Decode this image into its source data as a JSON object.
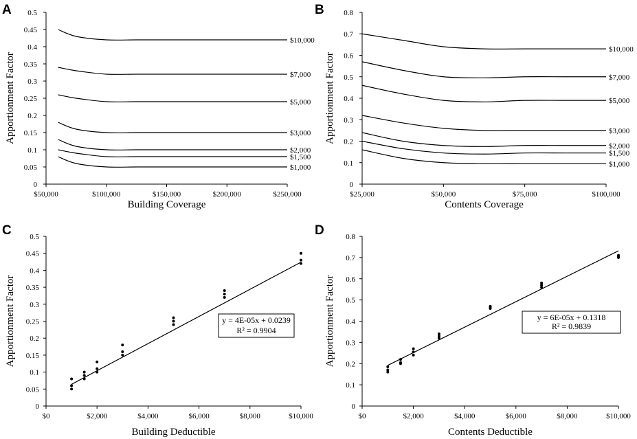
{
  "chart_data": [
    {
      "panel": "A",
      "type": "line",
      "xlabel": "Building Coverage",
      "ylabel": "Apportionment Factor",
      "xlim": [
        50000,
        250000
      ],
      "ylim": [
        0,
        0.5
      ],
      "x_ticks": [
        50000,
        100000,
        150000,
        200000,
        250000
      ],
      "x_tick_labels": [
        "$50,000",
        "$100,000",
        "$150,000",
        "$200,000",
        "$250,000"
      ],
      "y_ticks": [
        0,
        0.05,
        0.1,
        0.15,
        0.2,
        0.25,
        0.3,
        0.35,
        0.4,
        0.45,
        0.5
      ],
      "y_tick_labels": [
        "0",
        "0.05",
        "0.1",
        "0.15",
        "0.2",
        "0.25",
        "0.3",
        "0.35",
        "0.4",
        "0.45",
        "0.5"
      ],
      "x": [
        60000,
        75000,
        100000,
        125000,
        150000,
        175000,
        200000,
        225000,
        250000
      ],
      "series": [
        {
          "name": "$10,000",
          "values": [
            0.45,
            0.43,
            0.42,
            0.42,
            0.42,
            0.42,
            0.42,
            0.42,
            0.42
          ]
        },
        {
          "name": "$7,000",
          "values": [
            0.34,
            0.33,
            0.32,
            0.32,
            0.32,
            0.32,
            0.32,
            0.32,
            0.32
          ]
        },
        {
          "name": "$5,000",
          "values": [
            0.26,
            0.25,
            0.24,
            0.24,
            0.24,
            0.24,
            0.24,
            0.24,
            0.24
          ]
        },
        {
          "name": "$3,000",
          "values": [
            0.18,
            0.16,
            0.15,
            0.15,
            0.15,
            0.15,
            0.15,
            0.15,
            0.15
          ]
        },
        {
          "name": "$2,000",
          "values": [
            0.13,
            0.11,
            0.1,
            0.1,
            0.1,
            0.1,
            0.1,
            0.1,
            0.1
          ]
        },
        {
          "name": "$1,500",
          "values": [
            0.1,
            0.09,
            0.08,
            0.08,
            0.08,
            0.08,
            0.08,
            0.08,
            0.08
          ]
        },
        {
          "name": "$1,000",
          "values": [
            0.08,
            0.06,
            0.05,
            0.05,
            0.05,
            0.05,
            0.05,
            0.05,
            0.05
          ]
        }
      ]
    },
    {
      "panel": "B",
      "type": "line",
      "xlabel": "Contents Coverage",
      "ylabel": "Apportionment Factor",
      "xlim": [
        25000,
        100000
      ],
      "ylim": [
        0,
        0.8
      ],
      "x_ticks": [
        25000,
        50000,
        75000,
        100000
      ],
      "x_tick_labels": [
        "$25,000",
        "$50,000",
        "$75,000",
        "$100,000"
      ],
      "y_ticks": [
        0,
        0.1,
        0.2,
        0.3,
        0.4,
        0.5,
        0.6,
        0.7,
        0.8
      ],
      "y_tick_labels": [
        "0",
        "0.1",
        "0.2",
        "0.3",
        "0.4",
        "0.5",
        "0.6",
        "0.7",
        "0.8"
      ],
      "x": [
        25000,
        37500,
        50000,
        62500,
        75000,
        87500,
        100000
      ],
      "series": [
        {
          "name": "$10,000",
          "values": [
            0.7,
            0.67,
            0.64,
            0.63,
            0.63,
            0.63,
            0.63
          ]
        },
        {
          "name": "$7,000",
          "values": [
            0.57,
            0.53,
            0.5,
            0.495,
            0.5,
            0.5,
            0.5
          ]
        },
        {
          "name": "$5,000",
          "values": [
            0.46,
            0.42,
            0.39,
            0.383,
            0.39,
            0.39,
            0.39
          ]
        },
        {
          "name": "$3,000",
          "values": [
            0.32,
            0.285,
            0.26,
            0.25,
            0.25,
            0.25,
            0.25
          ]
        },
        {
          "name": "$2,000",
          "values": [
            0.24,
            0.2,
            0.18,
            0.175,
            0.18,
            0.18,
            0.18
          ]
        },
        {
          "name": "$1,500",
          "values": [
            0.2,
            0.165,
            0.145,
            0.14,
            0.145,
            0.145,
            0.145
          ]
        },
        {
          "name": "$1,000",
          "values": [
            0.16,
            0.12,
            0.1,
            0.095,
            0.095,
            0.095,
            0.095
          ]
        }
      ]
    },
    {
      "panel": "C",
      "type": "scatter",
      "xlabel": "Building Deductible",
      "ylabel": "Apportionment Factor",
      "xlim": [
        0,
        10000
      ],
      "ylim": [
        0,
        0.5
      ],
      "x_ticks": [
        0,
        2000,
        4000,
        6000,
        8000,
        10000
      ],
      "x_tick_labels": [
        "$0",
        "$2,000",
        "$4,000",
        "$6,000",
        "$8,000",
        "$10,000"
      ],
      "y_ticks": [
        0,
        0.05,
        0.1,
        0.15,
        0.2,
        0.25,
        0.3,
        0.35,
        0.4,
        0.45,
        0.5
      ],
      "y_tick_labels": [
        "0",
        "0.05",
        "0.1",
        "0.15",
        "0.2",
        "0.25",
        "0.3",
        "0.35",
        "0.4",
        "0.45",
        "0.5"
      ],
      "points": [
        [
          1000,
          0.08
        ],
        [
          1000,
          0.06
        ],
        [
          1000,
          0.05
        ],
        [
          1500,
          0.1
        ],
        [
          1500,
          0.09
        ],
        [
          1500,
          0.08
        ],
        [
          2000,
          0.13
        ],
        [
          2000,
          0.11
        ],
        [
          2000,
          0.1
        ],
        [
          3000,
          0.18
        ],
        [
          3000,
          0.16
        ],
        [
          3000,
          0.15
        ],
        [
          5000,
          0.26
        ],
        [
          5000,
          0.25
        ],
        [
          5000,
          0.24
        ],
        [
          7000,
          0.34
        ],
        [
          7000,
          0.33
        ],
        [
          7000,
          0.32
        ],
        [
          10000,
          0.45
        ],
        [
          10000,
          0.43
        ],
        [
          10000,
          0.42
        ]
      ],
      "trendline": {
        "slope": 4e-05,
        "intercept": 0.0239,
        "x_range": [
          1000,
          10000
        ]
      },
      "equation": "y = 4E-05x + 0.0239",
      "r_squared": "R² = 0.9904"
    },
    {
      "panel": "D",
      "type": "scatter",
      "xlabel": "Contents Deductible",
      "ylabel": "Apportionment Factor",
      "xlim": [
        0,
        10000
      ],
      "ylim": [
        0,
        0.8
      ],
      "x_ticks": [
        0,
        2000,
        4000,
        6000,
        8000,
        10000
      ],
      "x_tick_labels": [
        "$0",
        "$2,000",
        "$4,000",
        "$6,000",
        "$8,000",
        "$10,000"
      ],
      "y_ticks": [
        0,
        0.1,
        0.2,
        0.3,
        0.4,
        0.5,
        0.6,
        0.7,
        0.8
      ],
      "y_tick_labels": [
        "0",
        "0.1",
        "0.2",
        "0.3",
        "0.4",
        "0.5",
        "0.6",
        "0.7",
        "0.8"
      ],
      "points": [
        [
          1000,
          0.185
        ],
        [
          1000,
          0.17
        ],
        [
          1000,
          0.16
        ],
        [
          1500,
          0.22
        ],
        [
          1500,
          0.205
        ],
        [
          1500,
          0.2
        ],
        [
          2000,
          0.27
        ],
        [
          2000,
          0.255
        ],
        [
          2000,
          0.24
        ],
        [
          3000,
          0.34
        ],
        [
          3000,
          0.33
        ],
        [
          3000,
          0.32
        ],
        [
          5000,
          0.47
        ],
        [
          5000,
          0.465
        ],
        [
          5000,
          0.46
        ],
        [
          7000,
          0.58
        ],
        [
          7000,
          0.57
        ],
        [
          7000,
          0.56
        ],
        [
          10000,
          0.71
        ],
        [
          10000,
          0.705
        ],
        [
          10000,
          0.7
        ]
      ],
      "trendline": {
        "slope": 6e-05,
        "intercept": 0.1318,
        "x_range": [
          1000,
          10000
        ]
      },
      "equation": "y = 6E-05x + 0.1318",
      "r_squared": "R² = 0.9839"
    }
  ]
}
